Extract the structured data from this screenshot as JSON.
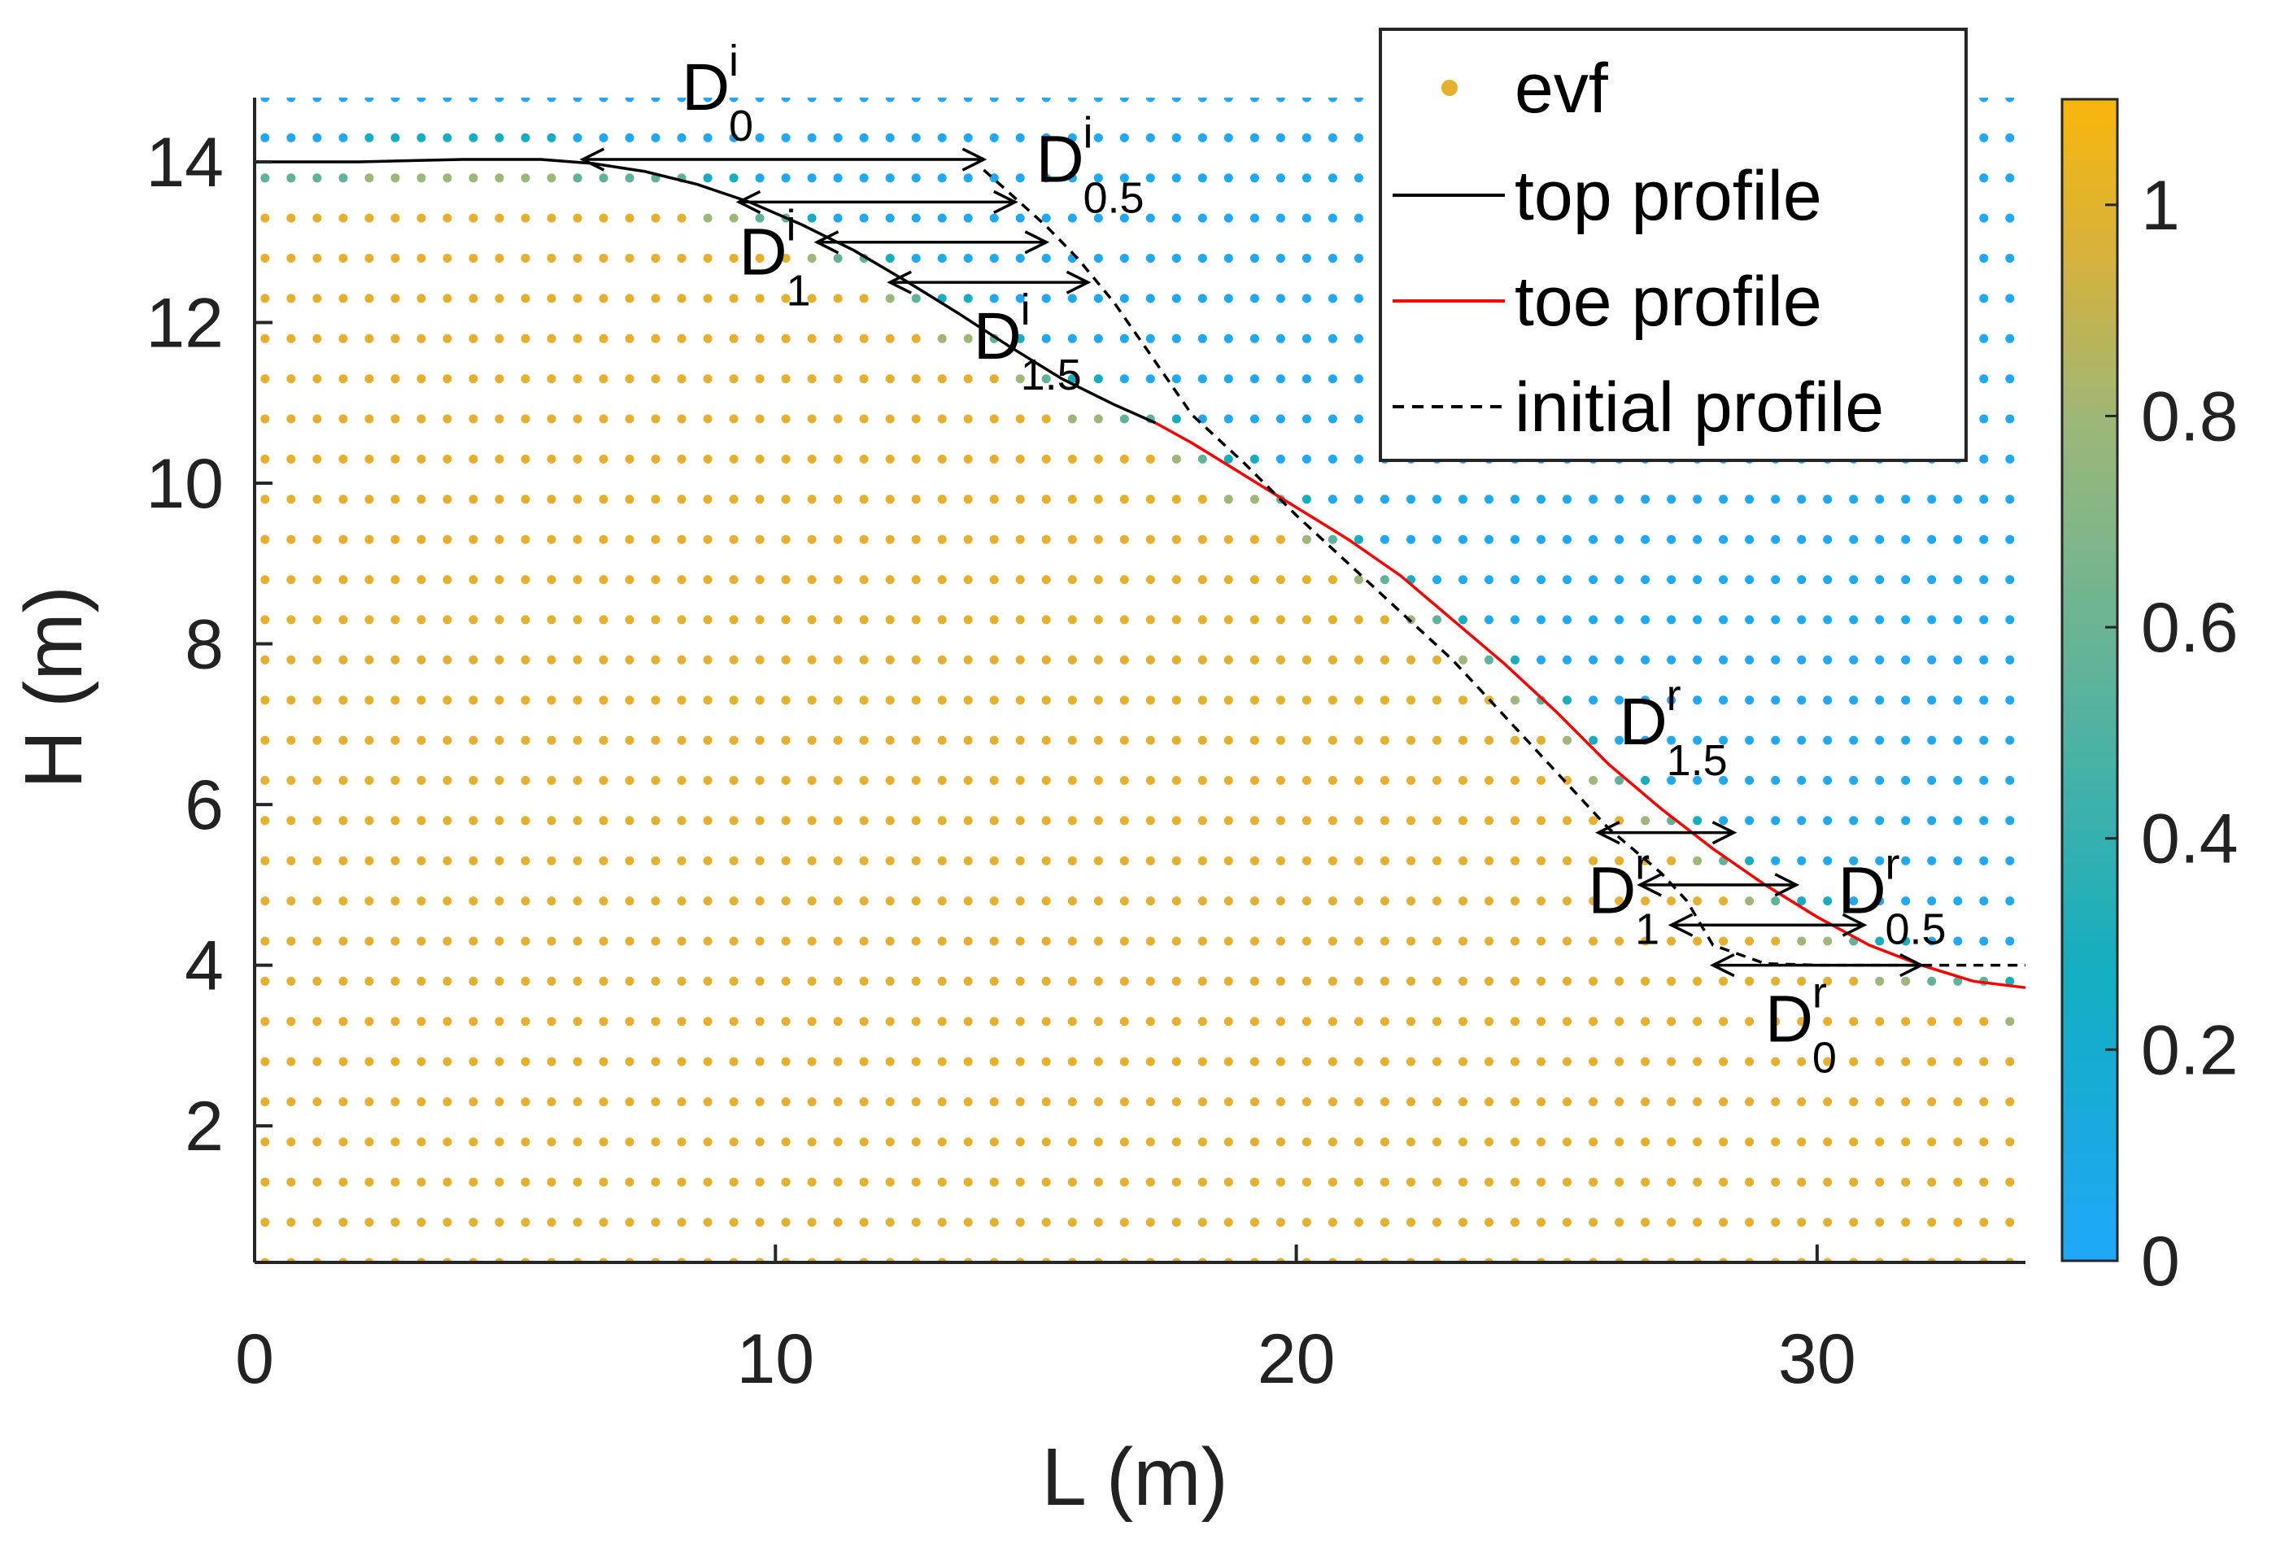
{
  "chart_data": {
    "type": "scatter",
    "xlabel": "L (m)",
    "ylabel": "H (m)",
    "xlim": [
      0,
      34
    ],
    "ylim": [
      0.3,
      14.8
    ],
    "xticks": [
      0,
      10,
      20,
      30
    ],
    "xtick_labels": [
      "0",
      "10",
      "20",
      "30"
    ],
    "yticks": [
      2,
      4,
      6,
      8,
      10,
      12,
      14
    ],
    "ytick_labels": [
      "2",
      "4",
      "6",
      "8",
      "10",
      "12",
      "14"
    ],
    "colorbar": {
      "range": [
        0,
        1.1
      ],
      "ticks": [
        0,
        0.2,
        0.4,
        0.6,
        0.8,
        1
      ],
      "tick_labels": [
        "0",
        "0.2",
        "0.4",
        "0.6",
        "0.8",
        "1"
      ],
      "colors": [
        "#1ea8f8",
        "#13aec0",
        "#5db39b",
        "#9cb779",
        "#d4b23e",
        "#f9b60b"
      ]
    },
    "series": [
      {
        "name": "evf",
        "kind": "scatter",
        "color": "#e8b02a",
        "grid": {
          "x_start": 0.2,
          "x_step": 0.5,
          "x_end": 33.8,
          "y_start": 0.3,
          "y_step": 0.5,
          "y_end": 14.8
        }
      },
      {
        "name": "top profile",
        "kind": "line",
        "color": "#000000",
        "x": [
          0,
          2,
          4,
          5.5,
          6.5,
          7.5,
          8.5,
          9.5,
          10.5,
          11.5,
          12.5,
          13.5,
          14.5,
          15.5,
          16.5,
          17.3
        ],
        "y": [
          14.0,
          14.0,
          14.03,
          14.03,
          13.98,
          13.88,
          13.72,
          13.5,
          13.22,
          12.9,
          12.52,
          12.12,
          11.7,
          11.3,
          10.98,
          10.75
        ]
      },
      {
        "name": "toe profile",
        "kind": "line",
        "color": "#ff0000",
        "x": [
          17.3,
          18,
          19,
          20,
          21,
          22,
          23,
          24,
          25,
          26,
          27,
          28,
          29,
          30,
          31,
          32,
          33,
          34
        ],
        "y": [
          10.75,
          10.5,
          10.1,
          9.7,
          9.3,
          8.85,
          8.3,
          7.75,
          7.15,
          6.5,
          5.95,
          5.45,
          5.0,
          4.6,
          4.25,
          4.0,
          3.8,
          3.72
        ]
      },
      {
        "name": "initial profile",
        "kind": "dashed",
        "color": "#000000",
        "x": [
          14,
          14.6,
          15.2,
          15.8,
          16.5,
          17.2,
          18,
          19,
          20,
          21,
          22,
          23,
          24,
          25,
          26,
          27,
          27.5,
          28,
          29,
          30,
          31,
          32,
          33,
          34
        ],
        "y": [
          13.9,
          13.55,
          13.2,
          12.8,
          12.25,
          11.6,
          10.85,
          10.25,
          9.6,
          9.0,
          8.4,
          7.8,
          7.1,
          6.4,
          5.7,
          5.15,
          4.8,
          4.25,
          4.02,
          4.0,
          4.0,
          4.0,
          4.0,
          4.0
        ]
      }
    ],
    "arrows": [
      {
        "x1": 6.3,
        "x2": 14.0,
        "y": 14.03
      },
      {
        "x1": 9.3,
        "x2": 14.6,
        "y": 13.5
      },
      {
        "x1": 10.8,
        "x2": 15.2,
        "y": 13.0
      },
      {
        "x1": 12.2,
        "x2": 16.0,
        "y": 12.5
      },
      {
        "x1": 25.8,
        "x2": 28.4,
        "y": 5.65
      },
      {
        "x1": 26.6,
        "x2": 29.6,
        "y": 5.0
      },
      {
        "x1": 27.2,
        "x2": 30.9,
        "y": 4.5
      },
      {
        "x1": 28.0,
        "x2": 32.0,
        "y": 4.0
      }
    ],
    "annotations": [
      {
        "base": "D",
        "sup": "i",
        "sub": "0",
        "x": 8.2,
        "y": 14.65
      },
      {
        "base": "D",
        "sup": "i",
        "sub": "0.5",
        "x": 15.0,
        "y": 13.75
      },
      {
        "base": "D",
        "sup": "i",
        "sub": "1",
        "x": 9.3,
        "y": 12.6
      },
      {
        "base": "D",
        "sup": "i",
        "sub": "1.5",
        "x": 13.8,
        "y": 11.55
      },
      {
        "base": "D",
        "sup": "r",
        "sub": "1.5",
        "x": 26.2,
        "y": 6.75
      },
      {
        "base": "D",
        "sup": "r",
        "sub": "1",
        "x": 25.6,
        "y": 4.65
      },
      {
        "base": "D",
        "sup": "r",
        "sub": "0.5",
        "x": 30.4,
        "y": 4.65
      },
      {
        "base": "D",
        "sup": "r",
        "sub": "0",
        "x": 29.0,
        "y": 3.05
      }
    ],
    "legend": {
      "position": "top-right",
      "entries": [
        "evf",
        "top profile",
        "toe profile",
        "initial profile"
      ]
    }
  }
}
